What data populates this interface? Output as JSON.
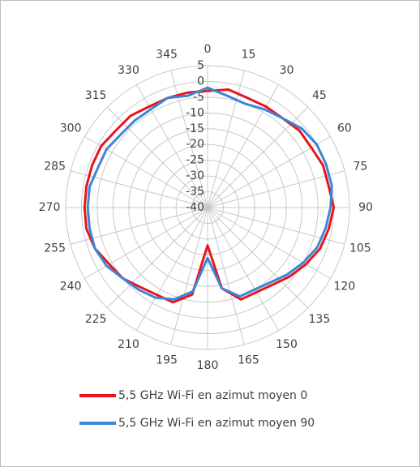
{
  "chart_data": {
    "type": "polar",
    "theta": [
      0,
      10,
      20,
      30,
      40,
      50,
      60,
      70,
      80,
      90,
      100,
      110,
      120,
      130,
      140,
      150,
      160,
      170,
      180,
      190,
      200,
      210,
      220,
      230,
      240,
      250,
      260,
      270,
      280,
      290,
      300,
      310,
      320,
      330,
      340,
      350
    ],
    "series": [
      {
        "name": "5,5 GHz Wi-Fi en azimut moyen 0",
        "color": "#e8141c",
        "values": [
          -3,
          -2,
          -3,
          -3,
          -3,
          -2,
          -2,
          -1,
          -1,
          0,
          -1,
          -2,
          -4,
          -6,
          -8,
          -9,
          -9,
          -14,
          -28,
          -12,
          -8,
          -8,
          -7,
          -5,
          -4,
          -2,
          -1,
          -1,
          -1,
          -1,
          -1,
          -2,
          -2,
          -3,
          -3,
          -3
        ]
      },
      {
        "name": "5,5 GHz Wi-Fi en azimut moyen 90",
        "color": "#3d85d6",
        "values": [
          -2,
          -4,
          -5,
          -4,
          -3,
          -1,
          0,
          0,
          0,
          -1,
          -2,
          -3,
          -5,
          -7,
          -9,
          -10,
          -10,
          -14,
          -24,
          -13,
          -9,
          -7,
          -6,
          -5,
          -3,
          -2,
          -2,
          -2,
          -2,
          -3,
          -3,
          -4,
          -4,
          -4,
          -3,
          -4
        ]
      }
    ],
    "rlim": [
      -40,
      5
    ],
    "rticks": [
      5,
      0,
      -5,
      -10,
      -15,
      -20,
      -25,
      -30,
      -35,
      -40
    ],
    "thetaticks": [
      0,
      15,
      30,
      45,
      60,
      75,
      90,
      105,
      120,
      135,
      150,
      165,
      180,
      195,
      210,
      225,
      240,
      255,
      270,
      285,
      300,
      315,
      330,
      345
    ],
    "grid": true
  }
}
